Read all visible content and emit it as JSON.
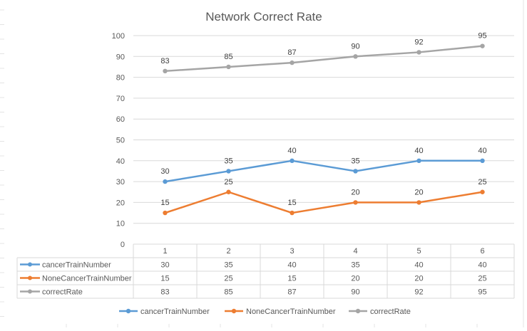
{
  "chart_data": {
    "type": "line",
    "title": "Network Correct Rate",
    "categories": [
      "1",
      "2",
      "3",
      "4",
      "5",
      "6"
    ],
    "ylim": [
      0,
      100
    ],
    "yticks": [
      0,
      10,
      20,
      30,
      40,
      50,
      60,
      70,
      80,
      90,
      100
    ],
    "grid": true,
    "legend": "bottom",
    "data_table": true,
    "series": [
      {
        "name": "cancerTrainNumber",
        "values": [
          30,
          35,
          40,
          35,
          40,
          40
        ],
        "color": "#5b9bd5"
      },
      {
        "name": "NoneCancerTrainNumber",
        "values": [
          15,
          25,
          15,
          20,
          20,
          25
        ],
        "color": "#ed7d31"
      },
      {
        "name": "correctRate",
        "values": [
          83,
          85,
          87,
          90,
          92,
          95
        ],
        "color": "#a5a5a5"
      }
    ]
  }
}
